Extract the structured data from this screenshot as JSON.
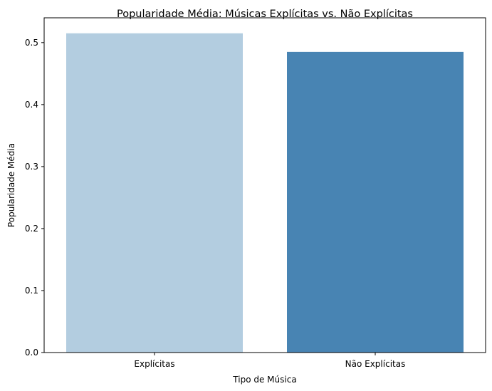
{
  "chart_data": {
    "type": "bar",
    "title": "Popularidade Média: Músicas Explícitas vs. Não Explícitas",
    "xlabel": "Tipo de Música",
    "ylabel": "Popularidade Média",
    "categories": [
      "Explícitas",
      "Não Explícitas"
    ],
    "values": [
      0.515,
      0.485
    ],
    "colors": [
      "#b3cde0",
      "#4884b3"
    ],
    "ylim": [
      0,
      0.54
    ],
    "yticks": [
      0.0,
      0.1,
      0.2,
      0.3,
      0.4,
      0.5
    ],
    "ytick_labels": [
      "0.0",
      "0.1",
      "0.2",
      "0.3",
      "0.4",
      "0.5"
    ],
    "grid": false,
    "legend": false
  }
}
